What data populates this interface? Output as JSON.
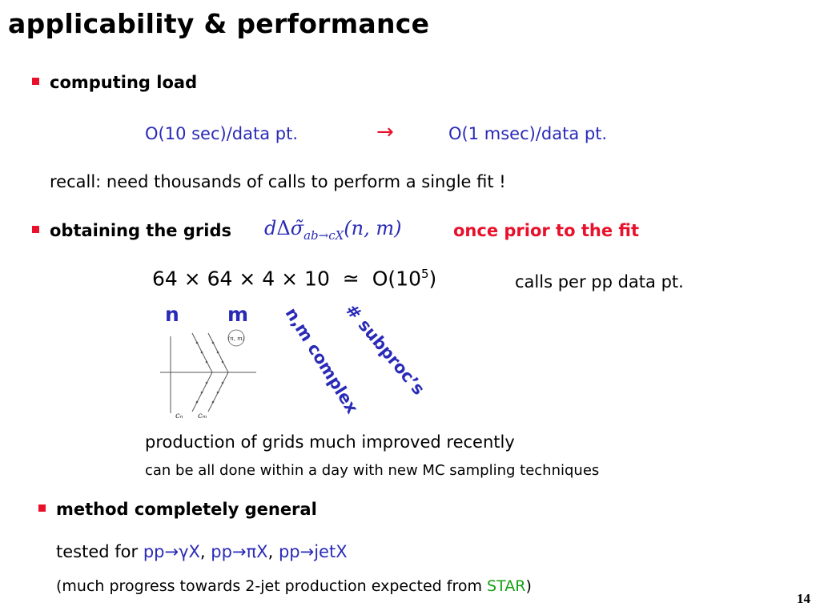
{
  "slide": {
    "title": "applicability & performance",
    "page_number": "14"
  },
  "bullet1": {
    "heading": "computing load",
    "before": "O(10 sec)/data pt.",
    "arrow": "→",
    "after": "O(1 msec)/data pt.",
    "recall": "recall: need thousands of calls to perform a single fit !"
  },
  "bullet2": {
    "heading": "obtaining the grids",
    "formula": {
      "d": "d",
      "delta": "Δ",
      "sigma": "σ̃",
      "subscript": "ab→cX",
      "args": "(n, m)"
    },
    "tail": "once prior to the fit",
    "count": {
      "product": "64 × 64 × 4 × 10",
      "approx": "≃",
      "order_base": "O(10",
      "order_exp": "5",
      "order_close": ")",
      "unit": "calls per pp data pt."
    },
    "label_n": "n",
    "label_m": "m",
    "rot_label_1": "n,m complex",
    "rot_label_2": "# subproc’s",
    "diagram": {
      "point_label": "(n, m)",
      "contour_n_label": "cₙ",
      "contour_m_label": "cₘ"
    },
    "production": "production of grids much improved recently",
    "production_sub": "can be all done within a day with new MC sampling techniques"
  },
  "bullet3": {
    "heading": "method completely general",
    "tested_prefix": "tested for",
    "process1": "pp→γX",
    "sep1": ",",
    "process2": "pp→πX",
    "sep2": ",",
    "process3": "pp→jetX",
    "progress_before": "(much progress towards 2-jet production expected from",
    "progress_star": "STAR",
    "progress_after": ")"
  },
  "colors": {
    "bullet": "#e8102a",
    "blue_text": "#2a2ab8",
    "red_text": "#e8102a",
    "green_text": "#14a014"
  },
  "icons": {
    "bullet": "red-square-bullet-icon",
    "arrow": "right-arrow-icon"
  }
}
